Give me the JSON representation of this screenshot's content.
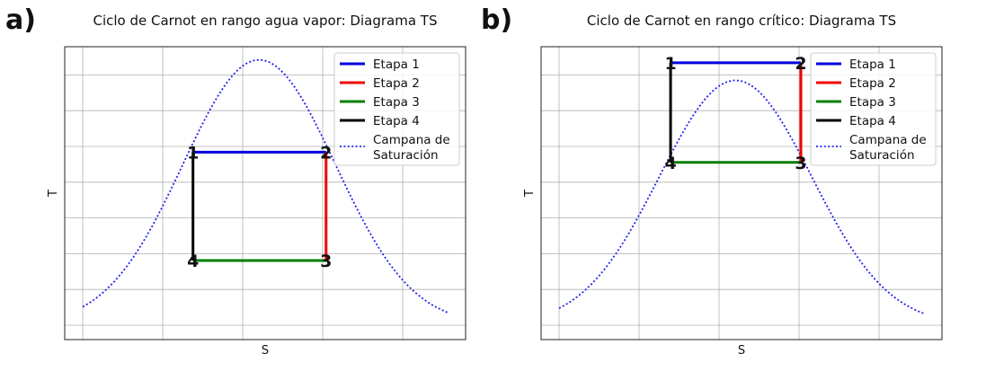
{
  "chart_data": [
    {
      "panel": "a)",
      "type": "line",
      "title": "Ciclo de Carnot en rango agua vapor: Diagrama TS",
      "xlabel": "S",
      "ylabel": "T",
      "xlim": [
        0,
        1
      ],
      "ylim": [
        0,
        1
      ],
      "grid": true,
      "legend_position": "top-right",
      "cycle_points": [
        {
          "label": "1",
          "x": 0.32,
          "y": 0.64
        },
        {
          "label": "2",
          "x": 0.652,
          "y": 0.64
        },
        {
          "label": "3",
          "x": 0.652,
          "y": 0.27
        },
        {
          "label": "4",
          "x": 0.32,
          "y": 0.27
        }
      ],
      "series": [
        {
          "name": "Etapa 1",
          "color": "#0000dd",
          "style": "solid",
          "from": 0,
          "to": 1
        },
        {
          "name": "Etapa 2",
          "color": "#ee0000",
          "style": "solid",
          "from": 1,
          "to": 2
        },
        {
          "name": "Etapa 3",
          "color": "#008000",
          "style": "solid",
          "from": 2,
          "to": 3
        },
        {
          "name": "Etapa 4",
          "color": "#000000",
          "style": "solid",
          "from": 3,
          "to": 0
        }
      ],
      "dome": {
        "name": "Campana de\nSaturación",
        "color": "#2222ee",
        "style": "dotted",
        "center": 0.485,
        "peak": 0.955,
        "base": 0.05,
        "width": 0.19,
        "xmin": 0.045,
        "xmax": 0.955
      }
    },
    {
      "panel": "b)",
      "type": "line",
      "title": "Ciclo de Carnot en rango crítico: Diagrama TS",
      "xlabel": "S",
      "ylabel": "T",
      "xlim": [
        0,
        1
      ],
      "ylim": [
        0,
        1
      ],
      "grid": true,
      "legend_position": "top-right",
      "cycle_points": [
        {
          "label": "1",
          "x": 0.323,
          "y": 0.945
        },
        {
          "label": "2",
          "x": 0.648,
          "y": 0.945
        },
        {
          "label": "3",
          "x": 0.648,
          "y": 0.605
        },
        {
          "label": "4",
          "x": 0.323,
          "y": 0.605
        }
      ],
      "series": [
        {
          "name": "Etapa 1",
          "color": "#0000dd",
          "style": "solid",
          "from": 0,
          "to": 1
        },
        {
          "name": "Etapa 2",
          "color": "#ee0000",
          "style": "solid",
          "from": 1,
          "to": 2
        },
        {
          "name": "Etapa 3",
          "color": "#008000",
          "style": "solid",
          "from": 2,
          "to": 3
        },
        {
          "name": "Etapa 4",
          "color": "#000000",
          "style": "solid",
          "from": 3,
          "to": 0
        }
      ],
      "dome": {
        "name": "Campana de\nSaturación",
        "color": "#2222ee",
        "style": "dotted",
        "center": 0.485,
        "peak": 0.885,
        "base": 0.05,
        "width": 0.19,
        "xmin": 0.045,
        "xmax": 0.955
      }
    }
  ]
}
